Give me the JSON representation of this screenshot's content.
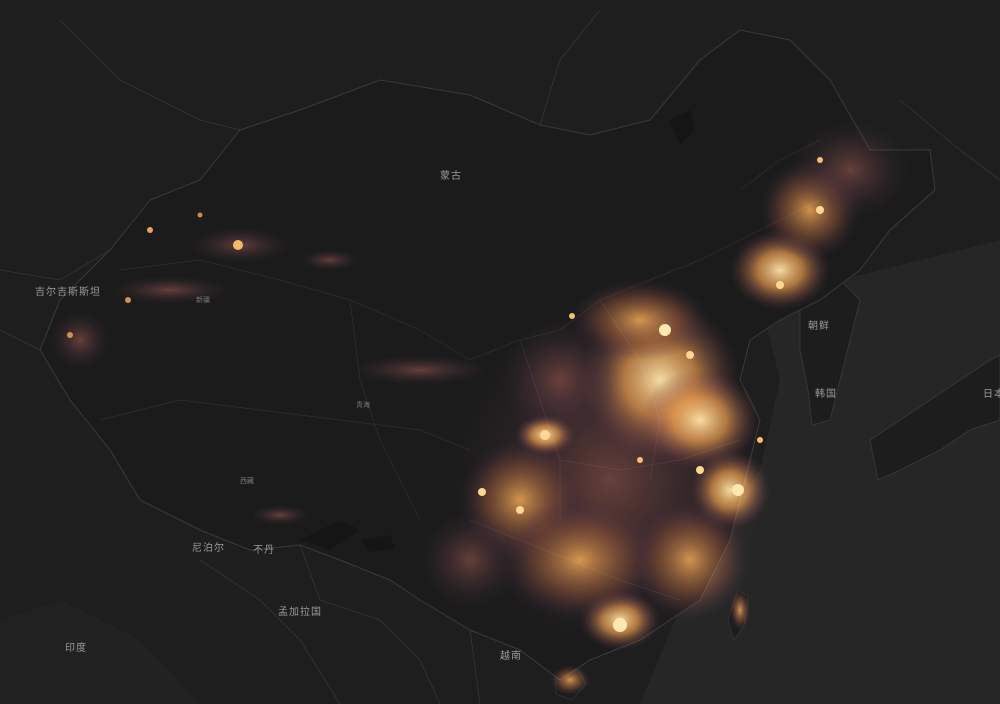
{
  "map": {
    "theme": "dark",
    "background_color": "#1e1e1e",
    "land_color": "#1b1b1b",
    "sea_color": "#2a2a2a",
    "border_color": "#3a3a3a",
    "light_colors": [
      "#3a1a4a",
      "#7a3a20",
      "#c86a20",
      "#f0a040",
      "#ffd890"
    ]
  },
  "labels": {
    "mongolia": "蒙古",
    "kyrgyzstan": "吉尔吉斯斯坦",
    "north_korea": "朝鲜",
    "south_korea": "韩国",
    "japan": "日本",
    "nepal": "尼泊尔",
    "bhutan": "不丹",
    "bangladesh": "孟加拉国",
    "india": "印度",
    "vietnam": "越南",
    "xinjiang_small": "新疆",
    "qinghai_small": "青海",
    "tibet_small": "西藏"
  }
}
